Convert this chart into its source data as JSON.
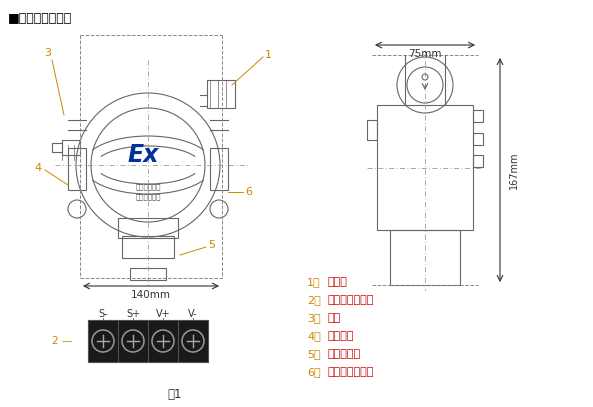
{
  "title": "■气体探测器结构",
  "title_color": "#000000",
  "background": "#ffffff",
  "legend_items": [
    {
      "num": "1、",
      "text": "入线孔"
    },
    {
      "num": "2、",
      "text": "探测器接线端子"
    },
    {
      "num": "3、",
      "text": "堵头"
    },
    {
      "num": "4、",
      "text": "安装支架"
    },
    {
      "num": "5、",
      "text": "气敏传感器"
    },
    {
      "num": "6、",
      "text": "传感器接线端子"
    }
  ],
  "legend_num_color": "#cc8800",
  "legend_text_color": "#cc0000",
  "fig1_label": "图1",
  "dim_140": "140mm",
  "dim_75": "75mm",
  "dim_167": "167mm",
  "terminal_labels": [
    "S-",
    "S+",
    "V+",
    "V-"
  ],
  "label_color": "#cc8800",
  "ex_text": "Ex",
  "warning_line1": "易燃易爆场所",
  "warning_line2": "断电源后开盖",
  "draw_color": "#666666",
  "dim_color": "#333333",
  "ex_color": "#003399",
  "label_color_str": "#cc8800"
}
